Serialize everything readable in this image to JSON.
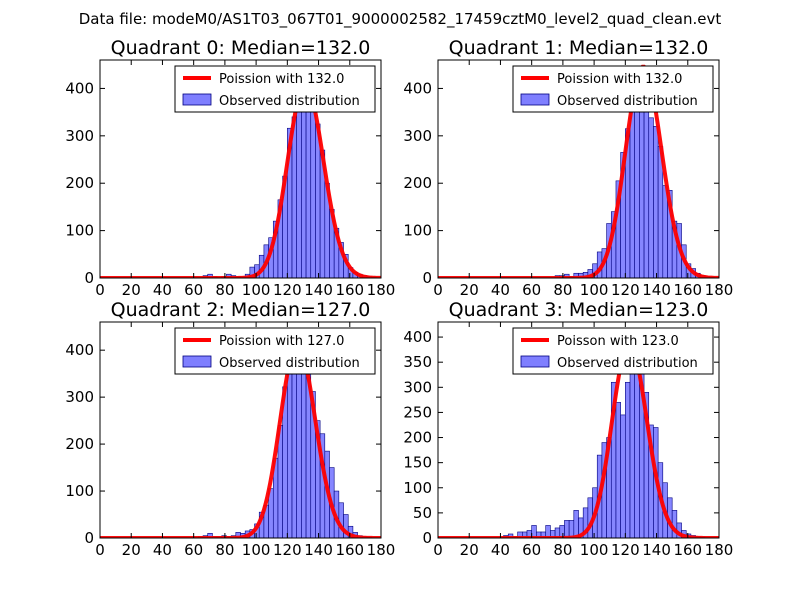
{
  "figure": {
    "suptitle": "Data file: modeM0/AS1T03_067T01_9000002582_17459cztM0_level2_quad_clean.evt"
  },
  "colors": {
    "observed": "#7f7fff",
    "observed_edge": "#00007f",
    "poisson": "#ff0000",
    "axis": "#000000"
  },
  "chart_data": [
    {
      "type": "bar",
      "title": "Quadrant 0: Median=132.0",
      "xlim": [
        0,
        180
      ],
      "ylim": [
        0,
        460
      ],
      "xticks": [
        0,
        20,
        40,
        60,
        80,
        100,
        120,
        140,
        160,
        180
      ],
      "yticks": [
        0,
        100,
        200,
        300,
        400
      ],
      "legend": {
        "placement": "top-right",
        "line_label": "Poission with 132.0",
        "bar_label": "Observed distribution"
      },
      "poisson_mean": 132.0,
      "bin_width": 3,
      "bins_x": [
        66,
        69,
        72,
        75,
        78,
        81,
        84,
        87,
        90,
        93,
        96,
        99,
        102,
        105,
        108,
        111,
        114,
        117,
        120,
        123,
        126,
        129,
        132,
        135,
        138,
        141,
        144,
        147,
        150,
        153,
        156,
        159,
        162,
        165,
        168,
        171,
        174,
        177
      ],
      "bins_y": [
        5,
        8,
        3,
        0,
        3,
        8,
        5,
        3,
        3,
        8,
        23,
        28,
        48,
        70,
        85,
        120,
        165,
        215,
        316,
        340,
        395,
        400,
        378,
        350,
        325,
        270,
        200,
        145,
        105,
        75,
        50,
        22,
        12,
        8,
        5,
        3,
        2,
        0
      ]
    },
    {
      "type": "bar",
      "title": "Quadrant 1: Median=132.0",
      "xlim": [
        0,
        180
      ],
      "ylim": [
        0,
        460
      ],
      "xticks": [
        0,
        20,
        40,
        60,
        80,
        100,
        120,
        140,
        160,
        180
      ],
      "yticks": [
        0,
        100,
        200,
        300,
        400
      ],
      "legend": {
        "placement": "top-right",
        "line_label": "Poission with 132.0",
        "bar_label": "Observed distribution"
      },
      "poisson_mean": 132.0,
      "bin_width": 3,
      "bins_x": [
        75,
        78,
        81,
        84,
        87,
        90,
        93,
        96,
        99,
        102,
        105,
        108,
        111,
        114,
        117,
        120,
        123,
        126,
        129,
        132,
        135,
        138,
        141,
        144,
        147,
        150,
        153,
        156,
        159,
        162,
        165,
        168,
        171,
        174,
        177
      ],
      "bins_y": [
        5,
        5,
        8,
        3,
        10,
        10,
        12,
        18,
        30,
        55,
        62,
        115,
        140,
        205,
        265,
        315,
        350,
        388,
        430,
        437,
        338,
        320,
        278,
        195,
        185,
        120,
        115,
        70,
        30,
        20,
        10,
        5,
        3,
        2,
        0
      ]
    },
    {
      "type": "bar",
      "title": "Quadrant 2: Median=127.0",
      "xlim": [
        0,
        180
      ],
      "ylim": [
        0,
        460
      ],
      "xticks": [
        0,
        20,
        40,
        60,
        80,
        100,
        120,
        140,
        160,
        180
      ],
      "yticks": [
        0,
        100,
        200,
        300,
        400
      ],
      "legend": {
        "placement": "top-right",
        "line_label": "Poission with 127.0",
        "bar_label": "Observed distribution"
      },
      "poisson_mean": 127.0,
      "bin_width": 3,
      "bins_x": [
        63,
        66,
        69,
        72,
        75,
        78,
        81,
        84,
        87,
        90,
        93,
        96,
        99,
        102,
        105,
        108,
        111,
        114,
        117,
        120,
        123,
        126,
        129,
        132,
        135,
        138,
        141,
        144,
        147,
        150,
        153,
        156,
        159,
        162,
        165,
        168,
        171,
        174,
        177
      ],
      "bins_y": [
        3,
        5,
        10,
        3,
        3,
        5,
        3,
        5,
        12,
        10,
        15,
        18,
        30,
        55,
        70,
        105,
        170,
        240,
        322,
        370,
        386,
        405,
        382,
        350,
        312,
        250,
        222,
        185,
        150,
        100,
        75,
        50,
        25,
        12,
        5,
        3,
        2,
        0,
        0
      ]
    },
    {
      "type": "bar",
      "title": "Quadrant 3: Median=123.0",
      "xlim": [
        0,
        180
      ],
      "ylim": [
        0,
        430
      ],
      "xticks": [
        0,
        20,
        40,
        60,
        80,
        100,
        120,
        140,
        160,
        180
      ],
      "yticks": [
        0,
        50,
        100,
        150,
        200,
        250,
        300,
        350,
        400
      ],
      "legend": {
        "placement": "top-right",
        "line_label": "Poisson with 123.0",
        "bar_label": "Observed distribution"
      },
      "poisson_mean": 123.0,
      "bin_width": 3,
      "bins_x": [
        42,
        45,
        48,
        51,
        54,
        57,
        60,
        63,
        66,
        69,
        72,
        75,
        78,
        81,
        84,
        87,
        90,
        93,
        96,
        99,
        102,
        105,
        108,
        111,
        114,
        117,
        120,
        123,
        126,
        129,
        132,
        135,
        138,
        141,
        144,
        147,
        150,
        153,
        156,
        159,
        162,
        165,
        168,
        171,
        174,
        177
      ],
      "bins_y": [
        5,
        8,
        3,
        12,
        12,
        15,
        25,
        12,
        12,
        25,
        15,
        20,
        25,
        35,
        35,
        55,
        40,
        60,
        80,
        100,
        165,
        190,
        200,
        310,
        270,
        245,
        310,
        380,
        370,
        340,
        290,
        225,
        220,
        150,
        110,
        80,
        55,
        30,
        15,
        8,
        5,
        3,
        2,
        0,
        0,
        0
      ]
    }
  ]
}
